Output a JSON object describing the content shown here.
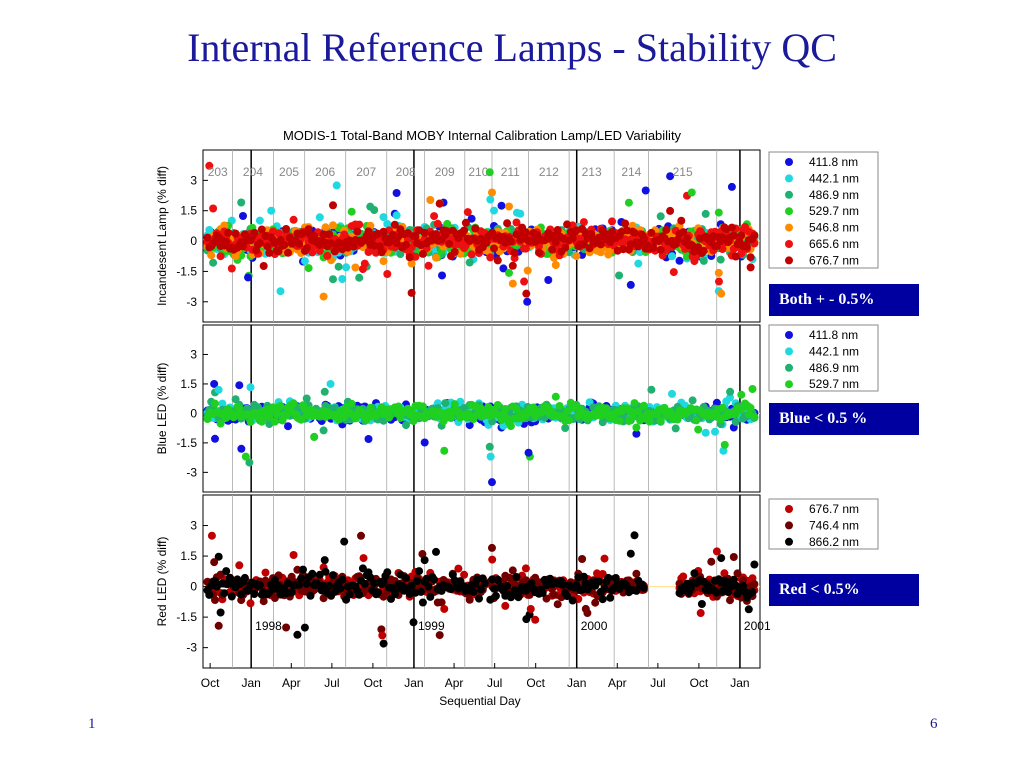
{
  "slide": {
    "title": "Internal Reference Lamps - Stability QC",
    "footer_left": "1",
    "page_number": "6"
  },
  "callouts": [
    "Both  + - 0.5%",
    "Blue  < 0.5 %",
    "Red  < 0.5%"
  ],
  "chart_data": {
    "type": "scatter",
    "title": "MODIS-1 Total-Band      MOBY Internal Calibration Lamp/LED Variability",
    "xlabel": "Sequential Day",
    "x_tick_labels": [
      "Oct",
      "Jan",
      "Apr",
      "Jul",
      "Oct",
      "Jan",
      "Apr",
      "Jul",
      "Oct",
      "Jan",
      "Apr",
      "Jul",
      "Oct",
      "Jan"
    ],
    "x_tick_months": [
      "1997-10",
      "1998-01",
      "1998-04",
      "1998-07",
      "1998-10",
      "1999-01",
      "1999-04",
      "1999-07",
      "1999-10",
      "2000-01",
      "2000-04",
      "2000-07",
      "2000-10",
      "2001-01"
    ],
    "xlim": [
      "1997-09-15",
      "2001-02-15"
    ],
    "year_lines": [
      "1998",
      "1999",
      "2000",
      "2001"
    ],
    "deployment_labels": [
      "203",
      "204",
      "205",
      "206",
      "207",
      "208",
      "209",
      "210",
      "211",
      "212",
      "213",
      "214",
      "215"
    ],
    "deployment_boundaries": [
      "1997-11-20",
      "1998-02-20",
      "1998-05-01",
      "1998-08-01",
      "1998-11-01",
      "1999-01-25",
      "1999-04-25",
      "1999-06-25",
      "1999-09-15",
      "1999-12-15",
      "2000-03-25",
      "2000-06-10",
      "2000-11-10",
      "2001-01-01"
    ],
    "panels": [
      {
        "ylabel": "Incandesent Lamp (% diff)",
        "ylim": [
          -4,
          4.5
        ],
        "yticks": [
          "3",
          "1.5",
          "0",
          "-1.5",
          "-3"
        ],
        "legend": [
          {
            "name": "411.8 nm",
            "color": "#1010e0"
          },
          {
            "name": "442.1 nm",
            "color": "#20d8e0"
          },
          {
            "name": "486.9 nm",
            "color": "#20b070"
          },
          {
            "name": "529.7 nm",
            "color": "#20d020"
          },
          {
            "name": "546.8 nm",
            "color": "#ff8c00"
          },
          {
            "name": "665.6 nm",
            "color": "#ee1010"
          },
          {
            "name": "676.7 nm",
            "color": "#c00000"
          }
        ],
        "band": 0.45,
        "spread": 1.2,
        "outliers": [
          {
            "x": "1997-12-25",
            "y": -1.8
          },
          {
            "x": "1998-02-15",
            "y": 1.5
          },
          {
            "x": "1998-09-25",
            "y": 1.7
          },
          {
            "x": "1999-06-20",
            "y": 3.4
          },
          {
            "x": "1999-06-25",
            "y": 2.4
          },
          {
            "x": "1999-09-05",
            "y": -2.0
          },
          {
            "x": "1999-09-10",
            "y": -2.6
          },
          {
            "x": "1999-09-12",
            "y": -3.0
          },
          {
            "x": "1999-08-20",
            "y": 1.4
          },
          {
            "x": "2000-04-05",
            "y": -1.7
          },
          {
            "x": "2000-09-15",
            "y": 2.4
          },
          {
            "x": "2000-11-20",
            "y": -2.6
          },
          {
            "x": "2000-11-15",
            "y": -2.0
          },
          {
            "x": "2001-01-25",
            "y": -1.3
          },
          {
            "x": "1999-03-05",
            "y": -1.7
          }
        ]
      },
      {
        "ylabel": "Blue LED (% diff)",
        "ylim": [
          -4,
          4.5
        ],
        "yticks": [
          "3",
          "1.5",
          "0",
          "-1.5",
          "-3"
        ],
        "legend": [
          {
            "name": "411.8 nm",
            "color": "#1010e0"
          },
          {
            "name": "442.1 nm",
            "color": "#20d8e0"
          },
          {
            "name": "486.9 nm",
            "color": "#20b070"
          },
          {
            "name": "529.7 nm",
            "color": "#20d020"
          }
        ],
        "band": 0.3,
        "spread": 0.6,
        "outliers": [
          {
            "x": "1997-10-10",
            "y": 1.5
          },
          {
            "x": "1997-10-20",
            "y": 1.2
          },
          {
            "x": "1997-12-28",
            "y": -2.5
          },
          {
            "x": "1997-12-20",
            "y": -2.2
          },
          {
            "x": "1997-12-10",
            "y": -1.8
          },
          {
            "x": "1998-06-28",
            "y": 1.5
          },
          {
            "x": "1998-06-15",
            "y": 1.1
          },
          {
            "x": "1999-03-10",
            "y": -1.9
          },
          {
            "x": "1999-06-25",
            "y": -3.5
          },
          {
            "x": "1999-06-22",
            "y": -2.2
          },
          {
            "x": "1999-06-20",
            "y": -1.7
          },
          {
            "x": "1999-09-18",
            "y": -2.2
          },
          {
            "x": "1999-09-15",
            "y": -2.0
          },
          {
            "x": "2000-11-25",
            "y": -1.9
          },
          {
            "x": "2000-12-10",
            "y": 1.1
          },
          {
            "x": "2000-11-28",
            "y": -1.6
          }
        ]
      },
      {
        "ylabel": "Red LED (% diff)",
        "ylim": [
          -4,
          4.5
        ],
        "yticks": [
          "3",
          "1.5",
          "0",
          "-1.5",
          "-3"
        ],
        "legend": [
          {
            "name": "676.7 nm",
            "color": "#c00000"
          },
          {
            "name": "746.4 nm",
            "color": "#700000"
          },
          {
            "name": "866.2 nm",
            "color": "#000000"
          }
        ],
        "band": 0.4,
        "spread": 1.0,
        "gaps": [
          [
            "1999-06-10",
            "1999-06-20"
          ],
          [
            "2000-06-01",
            "2000-08-15"
          ]
        ],
        "outliers": [
          {
            "x": "1997-10-05",
            "y": 2.5
          },
          {
            "x": "1997-10-10",
            "y": 1.2
          },
          {
            "x": "1998-06-15",
            "y": 1.3
          },
          {
            "x": "1998-09-10",
            "y": 1.4
          },
          {
            "x": "1998-10-20",
            "y": -2.1
          },
          {
            "x": "1998-10-25",
            "y": -2.8
          },
          {
            "x": "1998-10-22",
            "y": -2.4
          },
          {
            "x": "1999-01-20",
            "y": 1.6
          },
          {
            "x": "1999-01-25",
            "y": 1.3
          },
          {
            "x": "1999-03-10",
            "y": -1.1
          },
          {
            "x": "1999-06-25",
            "y": 1.9
          },
          {
            "x": "1999-09-10",
            "y": -1.6
          },
          {
            "x": "1999-09-20",
            "y": -1.1
          },
          {
            "x": "2000-01-25",
            "y": -1.3
          },
          {
            "x": "2000-11-20",
            "y": 1.4
          },
          {
            "x": "2000-10-05",
            "y": -1.3
          }
        ]
      }
    ]
  }
}
